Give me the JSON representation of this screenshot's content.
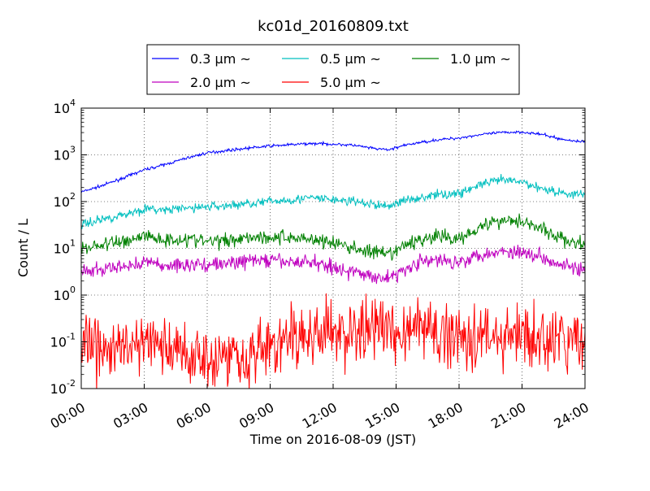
{
  "chart_data": {
    "type": "line",
    "title": "kc01d_20160809.txt",
    "xlabel": "Time on 2016-08-09 (JST)",
    "ylabel": "Count / L",
    "y_scale": "log",
    "xlim_hours": [
      0,
      24
    ],
    "ylim": [
      0.01,
      10000
    ],
    "grid": true,
    "legend_position": "top-center",
    "x_ticks": [
      "00:00",
      "03:00",
      "06:00",
      "09:00",
      "12:00",
      "15:00",
      "18:00",
      "21:00",
      "24:00"
    ],
    "y_ticks": [
      {
        "base": "10",
        "exp": "-2",
        "value": 0.01
      },
      {
        "base": "10",
        "exp": "-1",
        "value": 0.1
      },
      {
        "base": "10",
        "exp": "0",
        "value": 1
      },
      {
        "base": "10",
        "exp": "1",
        "value": 10
      },
      {
        "base": "10",
        "exp": "2",
        "value": 100
      },
      {
        "base": "10",
        "exp": "3",
        "value": 1000
      },
      {
        "base": "10",
        "exp": "4",
        "value": 10000
      }
    ],
    "hours": [
      0,
      1,
      2,
      3,
      4,
      5,
      6,
      7,
      8,
      9,
      10,
      11,
      12,
      13,
      14,
      14.7,
      15,
      16,
      17,
      18,
      19,
      20,
      21,
      22,
      23,
      24
    ],
    "series": [
      {
        "name": "0.3 μm ~",
        "color": "#0000ff",
        "noise": 0.015,
        "values": [
          160,
          220,
          320,
          480,
          620,
          850,
          1100,
          1250,
          1400,
          1550,
          1650,
          1750,
          1700,
          1600,
          1350,
          1280,
          1450,
          1800,
          2100,
          2300,
          2700,
          3000,
          3100,
          2700,
          2100,
          1900
        ]
      },
      {
        "name": "0.5 μm ~",
        "color": "#00bfbf",
        "noise": 0.05,
        "values": [
          32,
          42,
          52,
          70,
          65,
          72,
          78,
          82,
          92,
          100,
          110,
          120,
          110,
          100,
          85,
          80,
          95,
          120,
          140,
          150,
          230,
          290,
          260,
          190,
          150,
          140
        ]
      },
      {
        "name": "1.0 μm ~",
        "color": "#008000",
        "noise": 0.08,
        "values": [
          10,
          12,
          14,
          19,
          15,
          16,
          14,
          15,
          18,
          17,
          17,
          16,
          13,
          10,
          8,
          7,
          9,
          15,
          18,
          16,
          30,
          40,
          40,
          25,
          15,
          12
        ]
      },
      {
        "name": "2.0 μm ~",
        "color": "#bf00bf",
        "noise": 0.08,
        "values": [
          3,
          3.5,
          4,
          5.2,
          4.2,
          4.5,
          4.5,
          4.7,
          5.5,
          5.5,
          5.0,
          5.2,
          4.0,
          3.0,
          2.5,
          2.3,
          2.8,
          5.0,
          5.5,
          5.2,
          7.5,
          8.5,
          8.5,
          6.5,
          4.5,
          3.3
        ]
      },
      {
        "name": "5.0 μm ~",
        "color": "#ff0000",
        "noise": 0.35,
        "values": [
          0.07,
          0.065,
          0.07,
          0.1,
          0.07,
          0.06,
          0.05,
          0.05,
          0.055,
          0.08,
          0.11,
          0.14,
          0.15,
          0.16,
          0.2,
          0.19,
          0.17,
          0.2,
          0.14,
          0.15,
          0.13,
          0.13,
          0.13,
          0.1,
          0.1,
          0.11
        ]
      }
    ]
  }
}
